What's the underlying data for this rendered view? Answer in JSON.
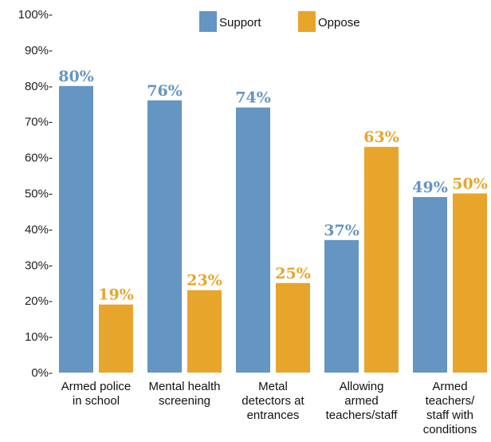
{
  "chart_data": {
    "type": "bar",
    "categories": [
      [
        "Armed police",
        "in school"
      ],
      [
        "Mental health",
        "screening"
      ],
      [
        "Metal",
        "detectors at",
        "entrances"
      ],
      [
        "Allowing",
        "armed",
        "teachers/staff"
      ],
      [
        "Armed",
        "teachers/",
        "staff with",
        "conditions"
      ]
    ],
    "series": [
      {
        "name": "Support",
        "color": "#6595c2",
        "values": [
          80,
          76,
          74,
          37,
          49
        ],
        "labels": [
          "80%",
          "76%",
          "74%",
          "37%",
          "49%"
        ]
      },
      {
        "name": "Oppose",
        "color": "#e8a52c",
        "values": [
          19,
          23,
          25,
          63,
          50
        ],
        "labels": [
          "19%",
          "23%",
          "25%",
          "63%",
          "50%"
        ]
      }
    ],
    "ylim": [
      0,
      100
    ],
    "yticks": [
      0,
      10,
      20,
      30,
      40,
      50,
      60,
      70,
      80,
      90,
      100
    ],
    "ytick_labels": [
      "0%-",
      "10%-",
      "20%-",
      "30%-",
      "40%-",
      "50%-",
      "60%-",
      "70%-",
      "80%-",
      "90%-",
      "100%-"
    ],
    "legend_position": "top-center",
    "grid": false
  }
}
